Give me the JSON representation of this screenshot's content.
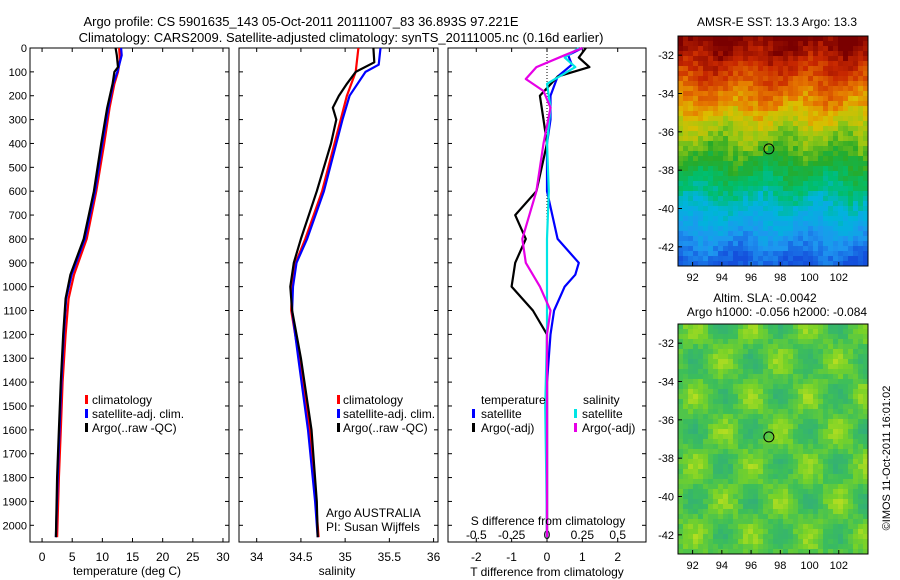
{
  "title": {
    "line1": "Argo profile: CS 5901635_143 05-Oct-2011 20111007_83 36.893S 97.221E",
    "line2": "Climatology: CARS2009. Satellite-adjusted climatology: synTS_20111005.nc (0.16d earlier)"
  },
  "colors": {
    "climatology": "#ff0000",
    "satellite": "#0000ff",
    "argo": "#000000",
    "satellite_salinity": "#00e5e5",
    "argo_salinity": "#e600e6"
  },
  "icons": [
    "line-legend-swatch",
    "location-circle-marker"
  ],
  "credit": "©IMOS 11-Oct-2011 16:01:02",
  "chart_data": [
    {
      "type": "line",
      "id": "temperature",
      "xlabel": "temperature (deg C)",
      "xticks": [
        0,
        5,
        10,
        15,
        20,
        25,
        30
      ],
      "xlim": [
        -2,
        31
      ],
      "ylim": [
        2070,
        0
      ],
      "yticks": [
        0,
        100,
        200,
        300,
        400,
        500,
        600,
        700,
        800,
        900,
        1000,
        1100,
        1200,
        1300,
        1400,
        1500,
        1600,
        1700,
        1800,
        1900,
        2000
      ],
      "legend": {
        "placement": "lower-center",
        "entries": [
          {
            "label": "climatology",
            "color": "#ff0000"
          },
          {
            "label": "satellite-adj. clim.",
            "color": "#0000ff"
          },
          {
            "label": "Argo(..raw -QC)",
            "color": "#000000"
          }
        ]
      },
      "series": [
        {
          "color": "#ff0000",
          "depth": [
            0,
            50,
            100,
            150,
            250,
            400,
            600,
            800,
            950,
            1050,
            1200,
            1400,
            1600,
            1800,
            2050
          ],
          "values": [
            12.8,
            12.9,
            12.6,
            12.0,
            11.2,
            10.3,
            9.0,
            7.4,
            5.3,
            4.4,
            3.9,
            3.4,
            3.1,
            2.8,
            2.5
          ]
        },
        {
          "color": "#0000ff",
          "depth": [
            0,
            30,
            100,
            150,
            250,
            400,
            600,
            800,
            950,
            1050,
            1200,
            1400,
            1600,
            1800,
            2050
          ],
          "values": [
            13.1,
            13.2,
            12.5,
            11.8,
            11.0,
            10.0,
            8.8,
            7.1,
            4.9,
            4.0,
            3.6,
            3.2,
            2.9,
            2.6,
            2.3
          ]
        },
        {
          "color": "#000000",
          "depth": [
            0,
            30,
            80,
            100,
            150,
            250,
            400,
            600,
            800,
            950,
            1050,
            1200,
            1400,
            1600,
            1800,
            2050
          ],
          "values": [
            12.2,
            12.4,
            12.6,
            12.0,
            11.7,
            10.8,
            9.8,
            8.6,
            6.9,
            4.7,
            3.9,
            3.5,
            3.1,
            2.8,
            2.5,
            2.3
          ]
        }
      ]
    },
    {
      "type": "line",
      "id": "salinity",
      "xlabel": "salinity",
      "xticks": [
        34,
        34.5,
        35,
        35.5,
        36
      ],
      "xlim": [
        33.8,
        36.05
      ],
      "ylim": [
        2070,
        0
      ],
      "legend": {
        "placement": "lower-right",
        "entries": [
          {
            "label": "climatology",
            "color": "#ff0000"
          },
          {
            "label": "satellite-adj. clim.",
            "color": "#0000ff"
          },
          {
            "label": "Argo(..raw -QC)",
            "color": "#000000"
          }
        ]
      },
      "annotation": {
        "line1": "Argo AUSTRALIA",
        "line2": "PI: Susan Wijffels"
      },
      "series": [
        {
          "color": "#ff0000",
          "depth": [
            0,
            100,
            200,
            300,
            400,
            600,
            800,
            900,
            1000,
            1100,
            1300,
            1600,
            1900,
            2050
          ],
          "values": [
            35.15,
            35.12,
            35.02,
            34.95,
            34.88,
            34.74,
            34.55,
            34.44,
            34.4,
            34.39,
            34.48,
            34.6,
            34.67,
            34.7
          ]
        },
        {
          "color": "#0000ff",
          "depth": [
            0,
            70,
            100,
            200,
            300,
            400,
            600,
            800,
            900,
            1000,
            1100,
            1300,
            1600,
            1900,
            2050
          ],
          "values": [
            35.4,
            35.38,
            35.23,
            35.05,
            34.97,
            34.9,
            34.76,
            34.57,
            34.45,
            34.41,
            34.4,
            34.47,
            34.58,
            34.66,
            34.69
          ]
        },
        {
          "color": "#000000",
          "depth": [
            0,
            60,
            100,
            150,
            200,
            250,
            300,
            400,
            600,
            800,
            900,
            1000,
            1100,
            1300,
            1600,
            1900,
            2050
          ],
          "values": [
            35.32,
            35.33,
            35.12,
            35.02,
            34.93,
            34.86,
            34.9,
            34.84,
            34.68,
            34.5,
            34.42,
            34.38,
            34.4,
            34.5,
            34.62,
            34.68,
            34.69
          ]
        }
      ]
    },
    {
      "type": "line",
      "id": "differences",
      "xlabel": "T difference from climatology",
      "x2label": "S difference from climatology",
      "xticks": [
        -2,
        -1,
        0,
        1,
        2
      ],
      "x2ticks": [
        -0.5,
        -0.25,
        0,
        0.25,
        0.5
      ],
      "x2ticklabels": [
        "-0.5",
        "-0.25",
        "0",
        "0.25",
        "0.5"
      ],
      "xlim": [
        -2.8,
        2.8
      ],
      "ylim": [
        2070,
        0
      ],
      "zero_line": "dotted",
      "legend": {
        "placement": "lower-center",
        "groups": [
          {
            "title": "temperature",
            "entries": [
              {
                "label": "satellite",
                "color": "#0000ff"
              },
              {
                "label": "Argo(-adj)",
                "color": "#000000"
              }
            ]
          },
          {
            "title": "salinity",
            "entries": [
              {
                "label": "satellite",
                "color": "#00e5e5"
              },
              {
                "label": "Argo(-adj)",
                "color": "#e600e6"
              }
            ]
          }
        ]
      },
      "series": [
        {
          "color": "#0000ff",
          "depth": [
            0,
            30,
            70,
            120,
            200,
            300,
            400,
            600,
            800,
            900,
            950,
            1000,
            1100,
            1200,
            1400,
            1700,
            2050
          ],
          "values": [
            1.0,
            0.6,
            0.7,
            0.3,
            0.1,
            0.1,
            0.0,
            0.0,
            0.3,
            0.9,
            0.8,
            0.5,
            0.2,
            0.1,
            0.0,
            0.0,
            0.0
          ]
        },
        {
          "color": "#000000",
          "depth": [
            0,
            40,
            80,
            120,
            200,
            300,
            400,
            600,
            700,
            800,
            900,
            1000,
            1100,
            1200,
            1300,
            1500,
            2050
          ],
          "values": [
            1.1,
            0.9,
            1.2,
            0.3,
            -0.2,
            -0.1,
            0.0,
            -0.3,
            -0.9,
            -0.6,
            -0.9,
            -1.0,
            -0.4,
            0.0,
            0.0,
            0.0,
            0.0
          ]
        },
        {
          "color": "#00e5e5",
          "depth": [
            0,
            40,
            80,
            150,
            250,
            400,
            600,
            800,
            1000,
            1200,
            1500,
            1800,
            2050
          ],
          "values": [
            0.9,
            0.5,
            0.8,
            0.0,
            0.1,
            0.0,
            0.05,
            0.0,
            0.0,
            0.0,
            -0.05,
            -0.02,
            0.0
          ]
        },
        {
          "color": "#e600e6",
          "depth": [
            0,
            30,
            80,
            130,
            180,
            250,
            400,
            600,
            800,
            900,
            1000,
            1100,
            1200,
            1300,
            1500,
            2050
          ],
          "values": [
            1.0,
            0.5,
            -0.3,
            -0.6,
            -0.1,
            0.1,
            -0.1,
            -0.3,
            -0.7,
            -0.6,
            -0.2,
            0.1,
            0.0,
            0.0,
            0.0,
            0.0
          ]
        }
      ]
    },
    {
      "type": "heatmap",
      "id": "sst_map",
      "title": "AMSR-E SST: 13.3 Argo: 13.3",
      "xticks": [
        92,
        94,
        96,
        98,
        100,
        102
      ],
      "yticks": [
        -32,
        -34,
        -36,
        -38,
        -40,
        -42
      ],
      "xlim": [
        91,
        104
      ],
      "ylim": [
        -43,
        -31
      ],
      "marker": {
        "lon": 97.221,
        "lat": -36.893
      }
    },
    {
      "type": "heatmap",
      "id": "sla_map",
      "title": "Altim. SLA: -0.0042",
      "subtitle": "Argo h1000: -0.056 h2000: -0.084",
      "xticks": [
        92,
        94,
        96,
        98,
        100,
        102
      ],
      "yticks": [
        -32,
        -34,
        -36,
        -38,
        -40,
        -42
      ],
      "xlim": [
        91,
        104
      ],
      "ylim": [
        -43,
        -31
      ],
      "marker": {
        "lon": 97.221,
        "lat": -36.893
      }
    }
  ]
}
